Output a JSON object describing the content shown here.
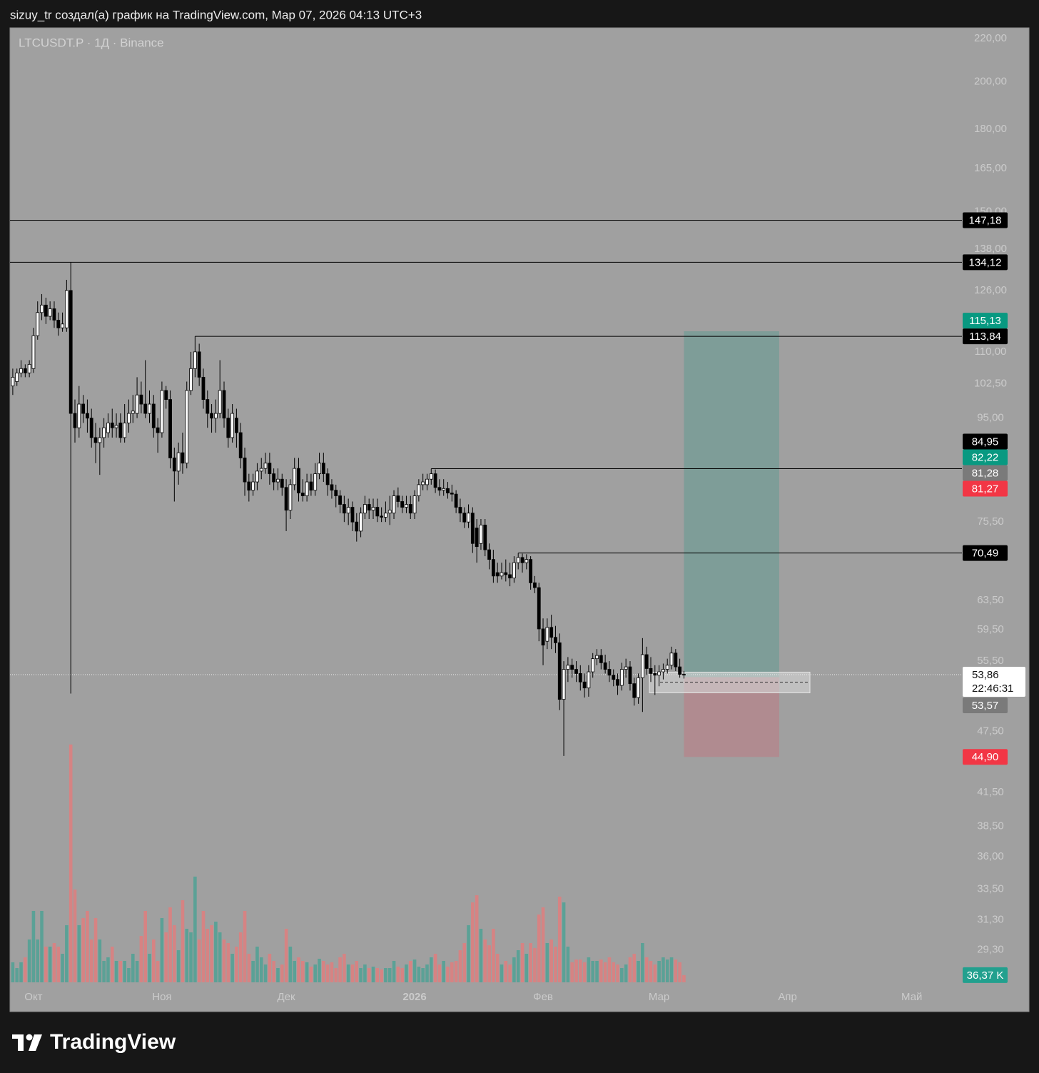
{
  "header": "sizuy_tr создал(а) график на TradingView.com, Мар 07, 2026 04:13 UTC+3",
  "brand": "TradingView",
  "chart_data": {
    "type": "candlestick",
    "symbol": "LTCUSDT.P · 1Д · Binance",
    "log_scale": true,
    "grid": false,
    "ylim": [
      27.1,
      224.9
    ],
    "yticks": [
      {
        "value": 220,
        "label": "220,00"
      },
      {
        "value": 200,
        "label": "200,00"
      },
      {
        "value": 180,
        "label": "180,00"
      },
      {
        "value": 165,
        "label": "165,00"
      },
      {
        "value": 150,
        "label": "150,00"
      },
      {
        "value": 138,
        "label": "138,00"
      },
      {
        "value": 126,
        "label": "126,00"
      },
      {
        "value": 110,
        "label": "110,00"
      },
      {
        "value": 102.5,
        "label": "102,50"
      },
      {
        "value": 95,
        "label": "95,00"
      },
      {
        "value": 75.5,
        "label": "75,50"
      },
      {
        "value": 63.5,
        "label": "63,50"
      },
      {
        "value": 59.5,
        "label": "59,50"
      },
      {
        "value": 55.5,
        "label": "55,50"
      },
      {
        "value": 47.5,
        "label": "47,50"
      },
      {
        "value": 41.5,
        "label": "41,50"
      },
      {
        "value": 38.5,
        "label": "38,50"
      },
      {
        "value": 36,
        "label": "36,00"
      },
      {
        "value": 33.5,
        "label": "33,50"
      },
      {
        "value": 31.3,
        "label": "31,30"
      },
      {
        "value": 29.3,
        "label": "29,30"
      }
    ],
    "xlim": [
      -5.5,
      224.1
    ],
    "xticks": [
      {
        "value": 0,
        "label": "Окт"
      },
      {
        "value": 31,
        "label": "Ноя"
      },
      {
        "value": 61,
        "label": "Дек"
      },
      {
        "value": 92,
        "label": "2026"
      },
      {
        "value": 123,
        "label": "Фев"
      },
      {
        "value": 151,
        "label": "Мар"
      },
      {
        "value": 182,
        "label": "Апр"
      },
      {
        "value": 212,
        "label": "Май"
      }
    ],
    "up_color": "#ffffff",
    "down_color": "#000000",
    "wick_color": "#000000",
    "volume_up_color": "#5ba196",
    "volume_down_color": "#d68383",
    "volume_ylim": [
      0,
      1400
    ],
    "x": [
      -5,
      -4,
      -3,
      -2,
      -1,
      0,
      1,
      2,
      3,
      4,
      5,
      6,
      7,
      8,
      9,
      10,
      11,
      12,
      13,
      14,
      15,
      16,
      17,
      18,
      19,
      20,
      21,
      22,
      23,
      24,
      25,
      26,
      27,
      28,
      29,
      30,
      31,
      32,
      33,
      34,
      35,
      36,
      37,
      38,
      39,
      40,
      41,
      42,
      43,
      44,
      45,
      46,
      47,
      48,
      49,
      50,
      51,
      52,
      53,
      54,
      55,
      56,
      57,
      58,
      59,
      60,
      61,
      62,
      63,
      64,
      65,
      66,
      67,
      68,
      69,
      70,
      71,
      72,
      73,
      74,
      75,
      76,
      77,
      78,
      79,
      80,
      81,
      82,
      83,
      84,
      85,
      86,
      87,
      88,
      89,
      90,
      91,
      92,
      93,
      94,
      95,
      96,
      97,
      98,
      99,
      100,
      101,
      102,
      103,
      104,
      105,
      106,
      107,
      108,
      109,
      110,
      111,
      112,
      113,
      114,
      115,
      116,
      117,
      118,
      119,
      120,
      121,
      122,
      123,
      124,
      125,
      126,
      127,
      128,
      129,
      130,
      131,
      132,
      133,
      134,
      135,
      136,
      137,
      138,
      139,
      140,
      141,
      142,
      143,
      144,
      145,
      146,
      147,
      148,
      149,
      150,
      151,
      152,
      153,
      154,
      155,
      156,
      157
    ],
    "open": [
      102,
      103,
      105,
      106,
      105,
      106,
      114,
      120,
      122,
      119,
      121,
      118,
      116,
      116,
      126,
      96,
      93,
      98,
      96,
      95,
      91,
      90,
      91,
      92,
      94,
      93,
      94,
      91,
      94,
      96,
      96,
      100,
      98,
      96,
      98,
      93,
      92,
      101,
      99,
      87,
      84.5,
      88,
      86,
      101,
      106,
      110,
      104,
      99,
      96,
      95,
      96,
      101,
      95,
      91,
      95,
      92,
      87,
      82.5,
      81,
      82.5,
      84.5,
      85,
      86,
      84,
      82.5,
      83,
      81.5,
      77.5,
      82,
      85,
      80.5,
      80,
      82.5,
      81,
      84,
      86,
      84,
      82,
      81,
      80,
      78.5,
      77,
      78,
      75.5,
      74,
      77,
      78.5,
      77.5,
      78,
      76.5,
      76.3,
      77,
      77,
      80,
      79,
      78,
      78.5,
      77,
      80,
      82,
      82,
      83,
      84,
      81.5,
      81,
      81.3,
      80.5,
      80.3,
      78,
      77,
      75.5,
      77,
      74.5,
      72,
      75,
      71,
      69.5,
      67.5,
      67,
      67.5,
      67.2,
      66.7,
      69,
      69.8,
      69,
      69.5,
      66,
      65.3,
      59.6,
      58,
      59.8,
      58.5,
      57.8,
      51,
      54.5,
      55,
      54.5,
      54,
      53,
      52.3,
      54.2,
      55.8,
      56.2,
      55.3,
      54.5,
      53.8,
      53.3,
      52.6,
      54.5,
      54.8,
      52.8,
      51.2,
      53.5,
      56.3,
      54.6,
      54,
      53.8,
      54.2,
      54.5,
      55,
      56.5,
      54.8,
      53.9
    ],
    "high": [
      106,
      106,
      108,
      107,
      108,
      116,
      123,
      125,
      124,
      123,
      123,
      120,
      120,
      129,
      134.12,
      99,
      102,
      100,
      99,
      97,
      94,
      93,
      95,
      96,
      97,
      96,
      96,
      98,
      99,
      100,
      104,
      103,
      108,
      101,
      100,
      95,
      103,
      102,
      101,
      89,
      90,
      92,
      103,
      110,
      113.84,
      112,
      106,
      101,
      98,
      99,
      108,
      103,
      97,
      98,
      97,
      94,
      89,
      84,
      84,
      86,
      87,
      88,
      88,
      85,
      85,
      84,
      83,
      83,
      87,
      87,
      83,
      84,
      84,
      86,
      88,
      88,
      85,
      83,
      82,
      81,
      80,
      79.5,
      79,
      77,
      78,
      80,
      79.5,
      79.5,
      79.5,
      78,
      79,
      80,
      81,
      81.5,
      80,
      80,
      80,
      81,
      83,
      84,
      84,
      84.95,
      84.8,
      83,
      83,
      82.5,
      82,
      81,
      79.5,
      78,
      78.5,
      78,
      76,
      76,
      76,
      72,
      71,
      69,
      69,
      69.5,
      69,
      70,
      70.49,
      70.4,
      70.3,
      70,
      67,
      66,
      61,
      61,
      61.5,
      60,
      59,
      55.5,
      56,
      55.8,
      55.5,
      55,
      54,
      55,
      56.5,
      57,
      57,
      56.3,
      55.5,
      54.5,
      54,
      55.3,
      55.8,
      55.5,
      53.5,
      54,
      58.4,
      57.3,
      56,
      55,
      55,
      55.2,
      55.8,
      57.3,
      57,
      55.8,
      54.3
    ],
    "low": [
      100,
      102,
      104,
      104,
      104,
      105,
      113,
      118,
      117,
      118,
      116,
      114,
      115,
      115,
      51.66,
      90,
      91,
      94,
      92,
      89,
      86,
      83.8,
      89,
      91,
      91,
      91,
      90,
      90,
      92,
      94,
      95,
      96,
      95,
      94,
      91,
      88,
      91,
      97,
      85,
      79,
      82,
      84,
      85,
      100,
      104,
      102,
      97,
      93,
      92,
      92,
      95,
      93,
      89,
      90,
      89,
      85,
      80,
      79,
      80,
      81,
      83,
      84,
      82,
      81,
      81,
      80,
      74,
      76,
      81,
      79,
      79,
      79,
      80,
      80,
      83,
      82.5,
      80,
      79.5,
      78,
      77,
      75.5,
      75,
      74,
      72.3,
      73,
      76,
      76,
      76,
      75.5,
      75.5,
      75.5,
      75,
      76,
      78,
      77,
      77,
      76,
      76,
      79,
      81,
      81,
      82,
      80.5,
      80,
      80,
      79.5,
      79,
      77,
      75.5,
      74.5,
      74.5,
      70.5,
      69,
      71,
      70,
      68,
      66,
      66,
      66.5,
      66.2,
      65.5,
      66,
      68,
      67.5,
      68,
      65,
      64.5,
      58,
      55,
      57,
      57,
      56.5,
      49.8,
      45,
      53,
      53.5,
      53,
      52,
      51.2,
      51.3,
      53.5,
      55,
      54.5,
      54,
      53,
      52.5,
      51.5,
      52,
      53.5,
      52,
      50.3,
      50.5,
      49.6,
      53.8,
      53,
      51.5,
      52.5,
      53.3,
      54,
      54.5,
      54.3,
      53.5,
      53.4
    ],
    "close": [
      104,
      105,
      106,
      105,
      107,
      114,
      120,
      122,
      119,
      121,
      118,
      116,
      117,
      126,
      96,
      93,
      98,
      96,
      95,
      91,
      90,
      91,
      93,
      94,
      93,
      93.5,
      91,
      94,
      96,
      96.5,
      100,
      98,
      96,
      98,
      93,
      92,
      101,
      99,
      87,
      84.5,
      88,
      86,
      101,
      106,
      110,
      104,
      99,
      96,
      95,
      96,
      101,
      95,
      91,
      96,
      92,
      87,
      82.5,
      81,
      82.5,
      84.5,
      85,
      86,
      84,
      82.5,
      83,
      81.5,
      77.5,
      82,
      85,
      80.5,
      80,
      82.5,
      81,
      84,
      86,
      84,
      82,
      81,
      80,
      78.5,
      77,
      78,
      75.5,
      74,
      77,
      78.5,
      77.5,
      78,
      76.5,
      76.3,
      77,
      77.5,
      80,
      79,
      78,
      78.5,
      77,
      80,
      82,
      82.5,
      83,
      84,
      81.5,
      81,
      81.3,
      80.5,
      80.3,
      78,
      77,
      75.5,
      77,
      72,
      71.5,
      75,
      71,
      69.5,
      67,
      67,
      67.5,
      67.2,
      66.7,
      69,
      69.8,
      69,
      69.5,
      66,
      65.3,
      59.6,
      57.5,
      59.8,
      58.5,
      57.8,
      51,
      54.5,
      55,
      54.5,
      54,
      53,
      52.3,
      54.2,
      55.8,
      56.2,
      55.3,
      54.5,
      53.8,
      53.3,
      52.6,
      54.5,
      54.8,
      52.8,
      51.2,
      53.5,
      56.3,
      54.6,
      54,
      53.8,
      54.2,
      54.5,
      55,
      56.5,
      54.8,
      53.9,
      53.86
    ],
    "volume": [
      101,
      72,
      101,
      126,
      216,
      360,
      216,
      360,
      180,
      180,
      198,
      180,
      144,
      288,
      1199,
      468,
      288,
      324,
      360,
      216,
      324,
      216,
      108,
      126,
      180,
      108,
      108,
      108,
      72,
      144,
      108,
      234,
      360,
      144,
      216,
      108,
      324,
      252,
      378,
      288,
      162,
      414,
      270,
      252,
      533,
      216,
      360,
      270,
      288,
      306,
      252,
      216,
      198,
      144,
      180,
      252,
      360,
      144,
      108,
      180,
      126,
      90,
      144,
      108,
      72,
      90,
      270,
      180,
      108,
      126,
      108,
      101,
      79,
      90,
      119,
      108,
      90,
      101,
      72,
      126,
      144,
      90,
      90,
      108,
      72,
      90,
      72,
      79,
      72,
      65,
      72,
      72,
      108,
      79,
      72,
      90,
      108,
      115,
      79,
      72,
      90,
      126,
      144,
      90,
      108,
      79,
      101,
      108,
      162,
      198,
      288,
      403,
      439,
      270,
      216,
      187,
      270,
      144,
      90,
      108,
      90,
      126,
      162,
      198,
      144,
      198,
      173,
      342,
      378,
      198,
      216,
      180,
      432,
      403,
      180,
      101,
      115,
      115,
      101,
      126,
      108,
      108,
      115,
      101,
      126,
      101,
      90,
      72,
      90,
      126,
      144,
      108,
      198,
      126,
      108,
      90,
      108,
      126,
      115,
      126,
      115,
      101,
      36.37
    ],
    "volume_tag": {
      "value": 36.37,
      "label": "36,37 K",
      "color": "#22a08e"
    },
    "line_color": "#000000",
    "line_tag_color": "#000000",
    "lines": [
      {
        "value": 147.18,
        "label": "147,18"
      },
      {
        "value": 134.12,
        "label": "134,12"
      },
      {
        "value": 113.84,
        "label": "113,84",
        "x_start": 39
      },
      {
        "value": 84.95,
        "label": "84,95",
        "x_start": 96
      },
      {
        "value": 70.49,
        "label": "70,49",
        "x_start": 117
      }
    ],
    "position": {
      "entry": {
        "value": 53.57,
        "label": "53,57",
        "color": "#7a7a7a"
      },
      "target": {
        "value": 115.13,
        "label": "115,13",
        "color": "#089981"
      },
      "stop": {
        "value": 44.9,
        "label": "44,90",
        "color": "#f23645"
      },
      "x_start": 157,
      "x_end": 180,
      "target_zone_color": "#7e9d98",
      "stop_zone_color": "#b08b90"
    },
    "markers": [
      {
        "value": 82.22,
        "label": "82,22",
        "color": "#089981"
      },
      {
        "value": 81.28,
        "label": "81,28",
        "color": "#7a7a7a"
      },
      {
        "value": 81.27,
        "label": "81,27",
        "color": "#f23645"
      }
    ],
    "last_price": {
      "value": 53.86,
      "label": "53,86",
      "countdown": "22:46:31"
    }
  }
}
